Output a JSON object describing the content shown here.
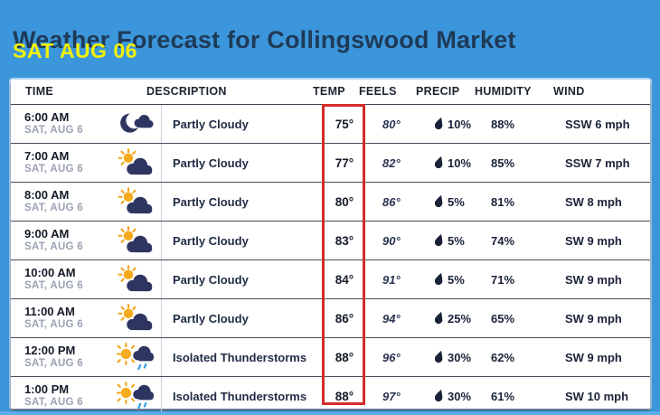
{
  "header": {
    "title": "Weather Forecast for Collingswood Market",
    "date": "SAT AUG 06",
    "title_color": "#1e3a57",
    "date_color": "#f2f204"
  },
  "colors": {
    "page_background": "#3c96db",
    "table_background": "#ffffff",
    "highlight_box": "#d42b2b",
    "row_text": "#1a2238",
    "date_subtext": "#9aa2b2"
  },
  "table": {
    "columns": [
      "TIME",
      "DESCRIPTION",
      "TEMP",
      "FEELS",
      "PRECIP",
      "HUMIDITY",
      "WIND"
    ],
    "highlight": {
      "column": "TEMP",
      "color": "#d42b2b"
    },
    "rows": [
      {
        "time": "6:00 AM",
        "date": "SAT, AUG 6",
        "icon": "partly-cloudy-night",
        "description": "Partly Cloudy",
        "temp": "75°",
        "feels": "80°",
        "precip": "10%",
        "humidity": "88%",
        "wind": "SSW 6 mph"
      },
      {
        "time": "7:00 AM",
        "date": "SAT, AUG 6",
        "icon": "partly-cloudy-day",
        "description": "Partly Cloudy",
        "temp": "77°",
        "feels": "82°",
        "precip": "10%",
        "humidity": "85%",
        "wind": "SSW 7 mph"
      },
      {
        "time": "8:00 AM",
        "date": "SAT, AUG 6",
        "icon": "partly-cloudy-day",
        "description": "Partly Cloudy",
        "temp": "80°",
        "feels": "86°",
        "precip": "5%",
        "humidity": "81%",
        "wind": "SW 8 mph"
      },
      {
        "time": "9:00 AM",
        "date": "SAT, AUG 6",
        "icon": "partly-cloudy-day",
        "description": "Partly Cloudy",
        "temp": "83°",
        "feels": "90°",
        "precip": "5%",
        "humidity": "74%",
        "wind": "SW 9 mph"
      },
      {
        "time": "10:00 AM",
        "date": "SAT, AUG 6",
        "icon": "partly-cloudy-day",
        "description": "Partly Cloudy",
        "temp": "84°",
        "feels": "91°",
        "precip": "5%",
        "humidity": "71%",
        "wind": "SW 9 mph"
      },
      {
        "time": "11:00 AM",
        "date": "SAT, AUG 6",
        "icon": "partly-cloudy-day",
        "description": "Partly Cloudy",
        "temp": "86°",
        "feels": "94°",
        "precip": "25%",
        "humidity": "65%",
        "wind": "SW 9 mph"
      },
      {
        "time": "12:00 PM",
        "date": "SAT, AUG 6",
        "icon": "isolated-thunderstorms",
        "description": "Isolated Thunderstorms",
        "temp": "88°",
        "feels": "96°",
        "precip": "30%",
        "humidity": "62%",
        "wind": "SW 9 mph"
      },
      {
        "time": "1:00 PM",
        "date": "SAT, AUG 6",
        "icon": "isolated-thunderstorms",
        "description": "Isolated Thunderstorms",
        "temp": "88°",
        "feels": "97°",
        "precip": "30%",
        "humidity": "61%",
        "wind": "SW 10 mph"
      }
    ]
  }
}
